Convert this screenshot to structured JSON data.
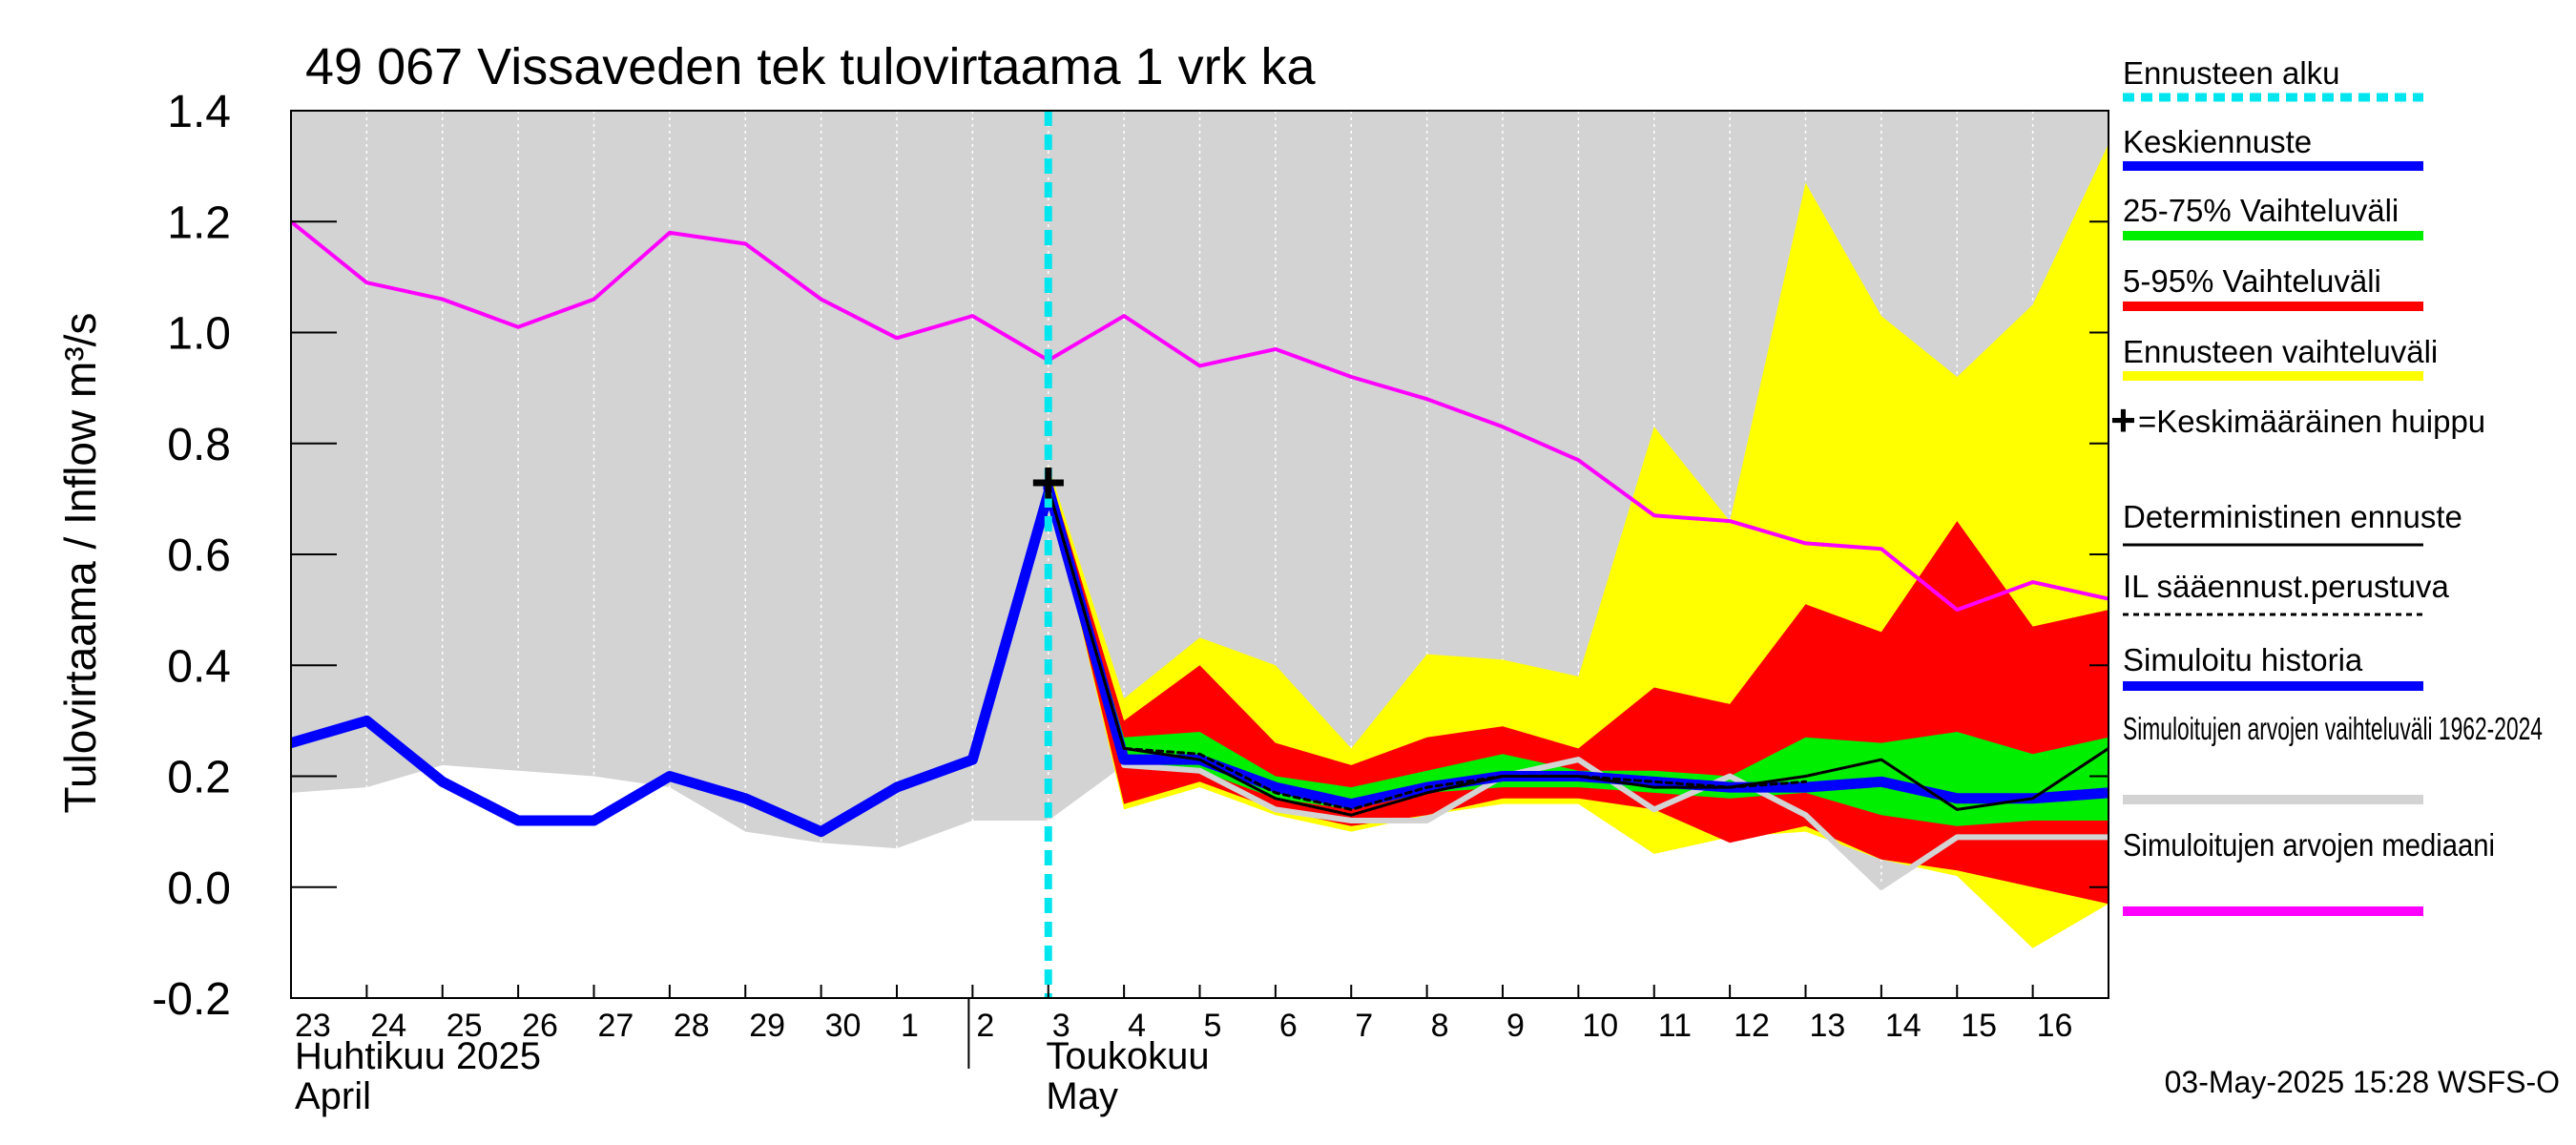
{
  "chart_data": {
    "type": "area",
    "title": "49 067 Vissaveden tek tulovirtaama 1 vrk ka",
    "ylabel": "Tulovirtaama / Inflow    m³/s",
    "ylim": [
      -0.2,
      1.4
    ],
    "yticks": [
      -0.2,
      0.0,
      0.2,
      0.4,
      0.6,
      0.8,
      1.0,
      1.2,
      1.4
    ],
    "ytick_labels": [
      "-0.2",
      "0.0",
      "0.2",
      "0.4",
      "0.6",
      "0.8",
      "1.0",
      "1.2",
      "1.4"
    ],
    "x_day_labels": [
      "23",
      "24",
      "25",
      "26",
      "27",
      "28",
      "29",
      "30",
      "1",
      "2",
      "3",
      "4",
      "5",
      "6",
      "7",
      "8",
      "9",
      "10",
      "11",
      "12",
      "13",
      "14",
      "15",
      "16"
    ],
    "month_labels": [
      {
        "fi": "Huhtikuu  2025",
        "en": "April",
        "start_index": 0
      },
      {
        "fi": "Toukokuu",
        "en": "May",
        "start_index": 9
      }
    ],
    "forecast_start_index": 10,
    "x_range": [
      0,
      24
    ],
    "series": {
      "sim_range_upper": {
        "x": [
          0,
          1,
          2,
          3,
          4,
          5,
          6,
          7,
          8,
          9,
          10,
          11,
          12,
          13,
          14,
          15,
          16,
          17,
          18,
          19,
          20,
          21,
          22,
          23,
          24
        ],
        "values": [
          1.4,
          1.4,
          1.4,
          1.4,
          1.4,
          1.4,
          1.4,
          1.4,
          1.4,
          1.4,
          1.4,
          1.4,
          1.4,
          1.4,
          1.4,
          1.4,
          1.4,
          1.4,
          1.4,
          1.4,
          1.4,
          1.4,
          1.4,
          1.4,
          1.4
        ]
      },
      "sim_range_lower": {
        "x": [
          0,
          1,
          2,
          3,
          4,
          5,
          6,
          7,
          8,
          9,
          10,
          11,
          12,
          13,
          14,
          15,
          16,
          17,
          18,
          19,
          20,
          21,
          22,
          23,
          24
        ],
        "values": [
          0.17,
          0.18,
          0.22,
          0.21,
          0.2,
          0.18,
          0.1,
          0.08,
          0.07,
          0.12,
          0.12,
          0.22,
          0.2,
          0.14,
          0.12,
          0.12,
          0.2,
          0.2,
          0.16,
          0.2,
          0.13,
          0.0,
          0.08,
          0.09,
          0.08
        ]
      },
      "sim_median": {
        "name": "Simuloitujen arvojen mediaani",
        "x": [
          0,
          1,
          2,
          3,
          4,
          5,
          6,
          7,
          8,
          9,
          10,
          11,
          12,
          13,
          14,
          15,
          16,
          17,
          18,
          19,
          20,
          21,
          22,
          23,
          24
        ],
        "values": [
          1.2,
          1.09,
          1.06,
          1.01,
          1.06,
          1.18,
          1.16,
          1.06,
          0.99,
          1.03,
          0.95,
          1.03,
          0.94,
          0.97,
          0.92,
          0.88,
          0.83,
          0.77,
          0.67,
          0.66,
          0.62,
          0.61,
          0.5,
          0.55,
          0.52
        ]
      },
      "sim_history": {
        "name": "Simuloitu historia",
        "x": [
          0,
          1,
          2,
          3,
          4,
          5,
          6,
          7,
          8,
          9,
          10
        ],
        "values": [
          0.26,
          0.3,
          0.19,
          0.12,
          0.12,
          0.2,
          0.16,
          0.1,
          0.18,
          0.23,
          0.71
        ]
      },
      "forecast_full_upper": {
        "x": [
          10,
          11,
          12,
          13,
          14,
          15,
          16,
          17,
          18,
          19,
          20,
          21,
          22,
          23,
          24
        ],
        "values": [
          0.76,
          0.34,
          0.45,
          0.4,
          0.25,
          0.42,
          0.41,
          0.38,
          0.83,
          0.66,
          1.27,
          1.03,
          0.92,
          1.05,
          1.34
        ]
      },
      "forecast_full_lower": {
        "x": [
          10,
          11,
          12,
          13,
          14,
          15,
          16,
          17,
          18,
          19,
          20,
          21,
          22,
          23,
          24
        ],
        "values": [
          0.72,
          0.14,
          0.18,
          0.13,
          0.1,
          0.13,
          0.15,
          0.15,
          0.06,
          0.09,
          0.1,
          0.05,
          0.02,
          -0.11,
          -0.03
        ]
      },
      "p95": {
        "x": [
          10,
          11,
          12,
          13,
          14,
          15,
          16,
          17,
          18,
          19,
          20,
          21,
          22,
          23,
          24
        ],
        "values": [
          0.75,
          0.3,
          0.4,
          0.26,
          0.22,
          0.27,
          0.29,
          0.25,
          0.36,
          0.33,
          0.51,
          0.46,
          0.66,
          0.47,
          0.5
        ]
      },
      "p05": {
        "x": [
          10,
          11,
          12,
          13,
          14,
          15,
          16,
          17,
          18,
          19,
          20,
          21,
          22,
          23,
          24
        ],
        "values": [
          0.72,
          0.15,
          0.19,
          0.14,
          0.11,
          0.13,
          0.16,
          0.16,
          0.14,
          0.08,
          0.11,
          0.05,
          0.03,
          0.0,
          -0.03
        ]
      },
      "p75": {
        "x": [
          10,
          11,
          12,
          13,
          14,
          15,
          16,
          17,
          18,
          19,
          20,
          21,
          22,
          23,
          24
        ],
        "values": [
          0.74,
          0.27,
          0.28,
          0.2,
          0.18,
          0.21,
          0.24,
          0.21,
          0.21,
          0.2,
          0.27,
          0.26,
          0.28,
          0.24,
          0.27
        ]
      },
      "p25": {
        "x": [
          10,
          11,
          12,
          13,
          14,
          15,
          16,
          17,
          18,
          19,
          20,
          21,
          22,
          23,
          24
        ],
        "values": [
          0.73,
          0.22,
          0.21,
          0.16,
          0.14,
          0.17,
          0.18,
          0.18,
          0.17,
          0.16,
          0.17,
          0.13,
          0.11,
          0.12,
          0.12
        ]
      },
      "mean_forecast": {
        "name": "Keskiennuste",
        "x": [
          10,
          11,
          12,
          13,
          14,
          15,
          16,
          17,
          18,
          19,
          20,
          21,
          22,
          23,
          24
        ],
        "values": [
          0.72,
          0.23,
          0.23,
          0.18,
          0.15,
          0.18,
          0.2,
          0.2,
          0.19,
          0.18,
          0.18,
          0.19,
          0.16,
          0.16,
          0.17
        ]
      },
      "deterministic": {
        "name": "Deterministinen ennuste",
        "x": [
          10,
          11,
          12,
          13,
          14,
          15,
          16,
          17,
          18,
          19,
          20,
          21,
          22,
          23,
          24
        ],
        "values": [
          0.72,
          0.25,
          0.23,
          0.16,
          0.13,
          0.17,
          0.2,
          0.2,
          0.18,
          0.18,
          0.2,
          0.23,
          0.14,
          0.16,
          0.25
        ]
      },
      "il_forecast": {
        "name": "IL sääennust.perustuva",
        "x": [
          10,
          11,
          12,
          13,
          14,
          15,
          16,
          17,
          18,
          19,
          20
        ],
        "values": [
          0.72,
          0.25,
          0.24,
          0.17,
          0.14,
          0.18,
          0.2,
          0.2,
          0.19,
          0.18,
          0.19
        ]
      },
      "sim_range_line": {
        "x": [
          11,
          12,
          13,
          14,
          15,
          16,
          17,
          18,
          19,
          20,
          21,
          22,
          23,
          24
        ],
        "values": [
          0.22,
          0.21,
          0.14,
          0.12,
          0.12,
          0.2,
          0.23,
          0.14,
          0.2,
          0.13,
          0.0,
          0.09,
          0.09,
          0.09
        ]
      }
    },
    "peak_marker": {
      "x": 10,
      "y": 0.73,
      "label": "+"
    },
    "legend": [
      {
        "label": "Ennusteen alku",
        "color": "#00e5ee",
        "style": "dotted"
      },
      {
        "label": "Keskiennuste",
        "color": "#0000ff",
        "style": "solid"
      },
      {
        "label": "25-75% Vaihteluväli",
        "color": "#00ee00",
        "style": "solid"
      },
      {
        "label": "5-95% Vaihteluväli",
        "color": "#ff0000",
        "style": "solid"
      },
      {
        "label": "Ennusteen vaihteluväli",
        "color": "#ffff00",
        "style": "solid"
      },
      {
        "label": "=Keskimääräinen huippu",
        "color": "#000000",
        "style": "marker"
      },
      {
        "label": "Deterministinen ennuste",
        "color": "#000000",
        "style": "thin"
      },
      {
        "label": "IL sääennust.perustuva",
        "color": "#000000",
        "style": "dashed"
      },
      {
        "label": "Simuloitu historia",
        "color": "#0000ff",
        "style": "solid"
      },
      {
        "label": "Simuloitujen arvojen vaihteluväli 1962-2024",
        "color": "#d3d3d3",
        "style": "solid"
      },
      {
        "label": "Simuloitujen arvojen mediaani",
        "color": "#ff00ff",
        "style": "solid"
      }
    ],
    "footer": "03-May-2025 15:28 WSFS-O"
  }
}
